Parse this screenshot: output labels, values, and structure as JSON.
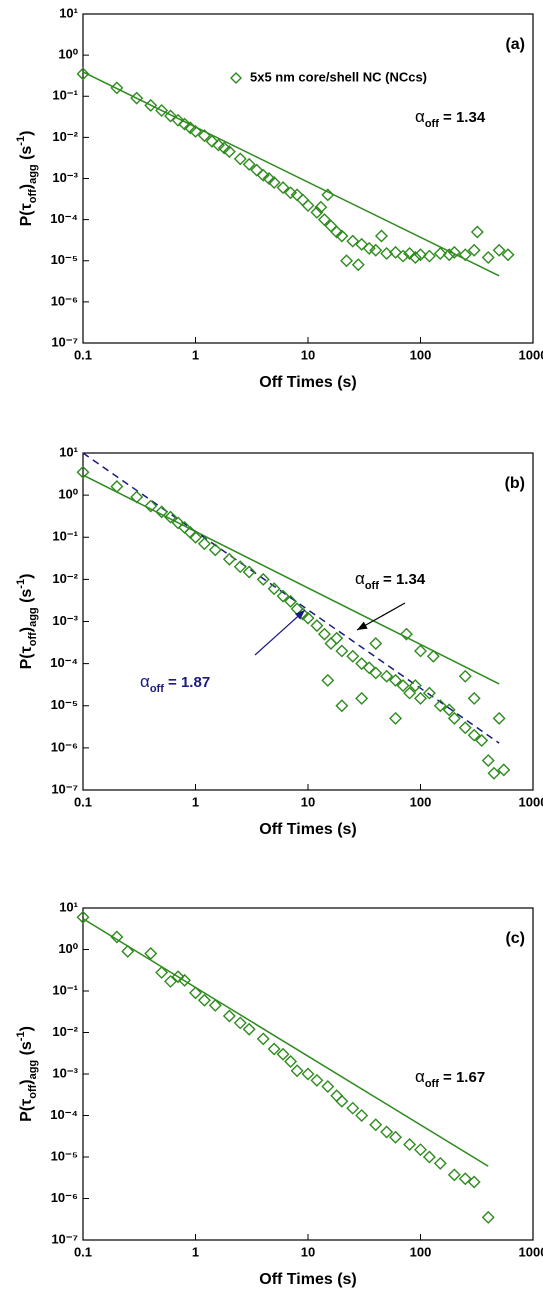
{
  "chart_data": [
    {
      "type": "scatter",
      "label": "(a)",
      "xscale": "log",
      "yscale": "log",
      "xlabel": "Off Times (s)",
      "ylabel": [
        "P(τ",
        "off",
        ")",
        "agg",
        " (s",
        "-1",
        ")"
      ],
      "xlim": [
        0.1,
        1000
      ],
      "ylim": [
        1e-07,
        10
      ],
      "xticks": [
        0.1,
        1,
        10,
        100,
        1000
      ],
      "yticks": [
        {
          "value": 1e-07,
          "label": "10⁻⁷"
        },
        {
          "value": 1e-06,
          "label": "10⁻⁶"
        },
        {
          "value": 1e-05,
          "label": "10⁻⁵"
        },
        {
          "value": 0.0001,
          "label": "10⁻⁴"
        },
        {
          "value": 0.001,
          "label": "10⁻³"
        },
        {
          "value": 0.01,
          "label": "10⁻²"
        },
        {
          "value": 0.1,
          "label": "10⁻¹"
        },
        {
          "value": 1,
          "label": "10⁰"
        },
        {
          "value": 10,
          "label": "10¹"
        }
      ],
      "legend": "upper right",
      "series": [
        {
          "name": "5x5 nm core/shell NC (NCcs)",
          "color": "#2e8b1e",
          "marker": "diamond",
          "x": [
            0.1,
            0.2,
            0.3,
            0.4,
            0.5,
            0.6,
            0.7,
            0.8,
            0.9,
            1,
            1.2,
            1.4,
            1.6,
            1.8,
            2,
            2.5,
            3,
            3.5,
            4,
            4.5,
            5,
            6,
            7,
            8,
            9,
            10,
            12,
            14,
            16,
            18,
            20,
            25,
            30,
            35,
            40,
            50,
            60,
            70,
            80,
            90,
            100,
            120,
            150,
            180,
            200,
            250,
            300,
            320,
            400,
            500,
            600,
            15,
            22,
            28,
            45,
            13
          ],
          "values": [
            0.35,
            0.16,
            0.09,
            0.06,
            0.045,
            0.033,
            0.026,
            0.021,
            0.017,
            0.014,
            0.011,
            0.008,
            0.0065,
            0.0055,
            0.0045,
            0.003,
            0.0022,
            0.0016,
            0.0012,
            0.001,
            0.0008,
            0.0006,
            0.00045,
            0.0004,
            0.0003,
            0.00022,
            0.00015,
            0.0001,
            7e-05,
            5e-05,
            4e-05,
            3e-05,
            2.5e-05,
            2e-05,
            1.8e-05,
            1.5e-05,
            1.6e-05,
            1.3e-05,
            1.5e-05,
            1.2e-05,
            1.4e-05,
            1.3e-05,
            1.5e-05,
            1.4e-05,
            1.6e-05,
            1.4e-05,
            1.8e-05,
            5e-05,
            1.2e-05,
            1.8e-05,
            1.4e-05,
            0.0004,
            1e-05,
            8e-06,
            4e-05,
            0.0002
          ]
        }
      ],
      "lines": [
        {
          "color": "#2e8b1e",
          "dash": false,
          "x": [
            0.1,
            500
          ],
          "values": [
            0.39,
            4.3e-06
          ]
        }
      ],
      "annotations": [
        {
          "text": [
            "α",
            "off",
            " = 1.34"
          ],
          "color": "#000000"
        }
      ]
    },
    {
      "type": "scatter",
      "label": "(b)",
      "xscale": "log",
      "yscale": "log",
      "xlabel": "Off Times (s)",
      "ylabel": [
        "P(τ",
        "off",
        ")",
        "agg",
        " (s",
        "-1",
        ")"
      ],
      "xlim": [
        0.1,
        1000
      ],
      "ylim": [
        1e-07,
        10
      ],
      "xticks": [
        0.1,
        1,
        10,
        100,
        1000
      ],
      "yticks": [
        {
          "value": 1e-07,
          "label": "10⁻⁷"
        },
        {
          "value": 1e-06,
          "label": "10⁻⁶"
        },
        {
          "value": 1e-05,
          "label": "10⁻⁵"
        },
        {
          "value": 0.0001,
          "label": "10⁻⁴"
        },
        {
          "value": 0.001,
          "label": "10⁻³"
        },
        {
          "value": 0.01,
          "label": "10⁻²"
        },
        {
          "value": 0.1,
          "label": "10⁻¹"
        },
        {
          "value": 1,
          "label": "10⁰"
        },
        {
          "value": 10,
          "label": "10¹"
        }
      ],
      "series": [
        {
          "color": "#2e8b1e",
          "marker": "diamond",
          "x": [
            0.1,
            0.2,
            0.3,
            0.4,
            0.5,
            0.6,
            0.7,
            0.8,
            0.9,
            1,
            1.2,
            1.5,
            2,
            2.5,
            3,
            4,
            5,
            6,
            7,
            8,
            9,
            10,
            12,
            14,
            16,
            18,
            20,
            25,
            30,
            35,
            40,
            50,
            60,
            70,
            75,
            80,
            90,
            100,
            120,
            150,
            180,
            200,
            250,
            300,
            350,
            400,
            450,
            550,
            15,
            20,
            30,
            40,
            60,
            100,
            130,
            250,
            300,
            500
          ],
          "values": [
            3.5,
            1.6,
            0.9,
            0.55,
            0.4,
            0.3,
            0.22,
            0.17,
            0.13,
            0.1,
            0.07,
            0.05,
            0.03,
            0.02,
            0.015,
            0.01,
            0.006,
            0.004,
            0.003,
            0.002,
            0.0015,
            0.0012,
            0.0008,
            0.0005,
            0.0003,
            0.0004,
            0.0002,
            0.00015,
            0.0001,
            8e-05,
            6e-05,
            5e-05,
            4e-05,
            3e-05,
            0.0005,
            2e-05,
            3e-05,
            1.5e-05,
            2e-05,
            1e-05,
            8e-06,
            5e-06,
            3e-06,
            2e-06,
            1.5e-06,
            5e-07,
            2.5e-07,
            3e-07,
            4e-05,
            1e-05,
            1.5e-05,
            0.0003,
            5e-06,
            0.0002,
            0.00015,
            5e-05,
            1.5e-05,
            5e-06
          ]
        }
      ],
      "lines": [
        {
          "color": "#2e8b1e",
          "dash": false,
          "x": [
            0.1,
            500
          ],
          "values": [
            3,
            3.3e-05
          ]
        },
        {
          "color": "#1a1a80",
          "dash": true,
          "x": [
            0.1,
            500
          ],
          "values": [
            10,
            1.3e-06
          ]
        }
      ],
      "annotations": [
        {
          "text": [
            "α",
            "off",
            " = 1.34"
          ],
          "color": "#000000"
        },
        {
          "text": [
            "α",
            "off",
            " = 1.87"
          ],
          "color": "#1a1a80"
        }
      ]
    },
    {
      "type": "scatter",
      "label": "(c)",
      "xscale": "log",
      "yscale": "log",
      "xlabel": "Off Times (s)",
      "ylabel": [
        "P(τ",
        "off",
        ")",
        "agg",
        " (s",
        "-1",
        ")"
      ],
      "xlim": [
        0.1,
        1000
      ],
      "ylim": [
        1e-07,
        10
      ],
      "xticks": [
        0.1,
        1,
        10,
        100,
        1000
      ],
      "yticks": [
        {
          "value": 1e-07,
          "label": "10⁻⁷"
        },
        {
          "value": 1e-06,
          "label": "10⁻⁶"
        },
        {
          "value": 1e-05,
          "label": "10⁻⁵"
        },
        {
          "value": 0.0001,
          "label": "10⁻⁴"
        },
        {
          "value": 0.001,
          "label": "10⁻³"
        },
        {
          "value": 0.01,
          "label": "10⁻²"
        },
        {
          "value": 0.1,
          "label": "10⁻¹"
        },
        {
          "value": 1,
          "label": "10⁰"
        },
        {
          "value": 10,
          "label": "10¹"
        }
      ],
      "series": [
        {
          "color": "#2e8b1e",
          "marker": "diamond",
          "x": [
            0.1,
            0.2,
            0.25,
            0.4,
            0.5,
            0.6,
            0.7,
            0.8,
            1,
            1.2,
            1.5,
            2,
            2.5,
            3,
            4,
            5,
            6,
            7,
            8,
            10,
            12,
            15,
            18,
            20,
            25,
            30,
            40,
            50,
            60,
            80,
            100,
            120,
            150,
            200,
            250,
            300,
            400
          ],
          "values": [
            6,
            2,
            0.9,
            0.8,
            0.28,
            0.17,
            0.22,
            0.18,
            0.09,
            0.06,
            0.045,
            0.025,
            0.017,
            0.012,
            0.007,
            0.004,
            0.003,
            0.002,
            0.0012,
            0.001,
            0.0007,
            0.0005,
            0.0003,
            0.00022,
            0.00015,
            0.0001,
            6e-05,
            4e-05,
            3e-05,
            2e-05,
            1.5e-05,
            1e-05,
            7e-06,
            3.7e-06,
            3e-06,
            2.5e-06,
            3.5e-07
          ]
        }
      ],
      "lines": [
        {
          "color": "#2e8b1e",
          "dash": false,
          "x": [
            0.1,
            400
          ],
          "values": [
            5.5,
            6e-06
          ]
        }
      ],
      "annotations": [
        {
          "text": [
            "α",
            "off",
            " = 1.67"
          ],
          "color": "#000000"
        }
      ]
    }
  ]
}
